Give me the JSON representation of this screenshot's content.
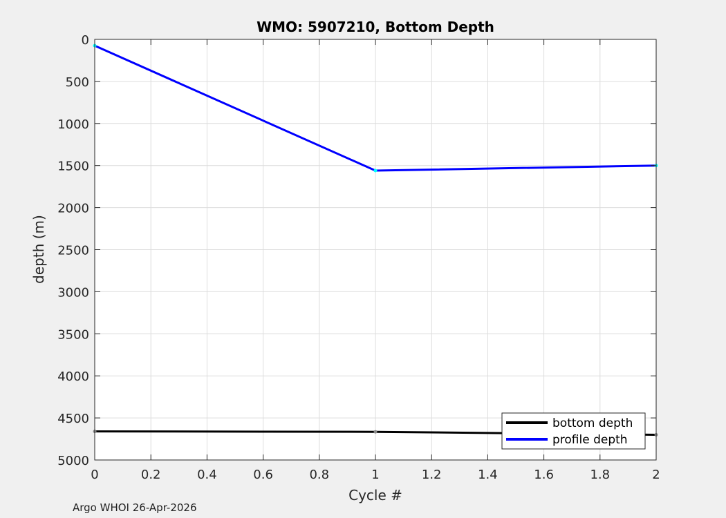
{
  "footer": "Argo WHOI 26-Apr-2026",
  "chart_data": {
    "type": "line",
    "title": "WMO: 5907210, Bottom Depth",
    "xlabel": "Cycle #",
    "ylabel": "depth (m)",
    "xlim": [
      0,
      2
    ],
    "ylim": [
      0,
      5000
    ],
    "y_reversed": true,
    "grid": true,
    "x_ticks": [
      "0",
      "0.2",
      "0.4",
      "0.6",
      "0.8",
      "1",
      "1.2",
      "1.4",
      "1.6",
      "1.8",
      "2"
    ],
    "y_ticks": [
      "0",
      "500",
      "1000",
      "1500",
      "2000",
      "2500",
      "3000",
      "3500",
      "4000",
      "4500",
      "5000"
    ],
    "legend_position": "bottom-right",
    "series": [
      {
        "name": "bottom depth",
        "x": [
          0,
          1,
          2
        ],
        "y": [
          4660,
          4665,
          4700
        ],
        "color": "#000000"
      },
      {
        "name": "profile depth",
        "x": [
          0,
          1,
          2
        ],
        "y": [
          75,
          1560,
          1500
        ],
        "color": "#0000ff",
        "marker_color": "#00ffff"
      }
    ]
  }
}
